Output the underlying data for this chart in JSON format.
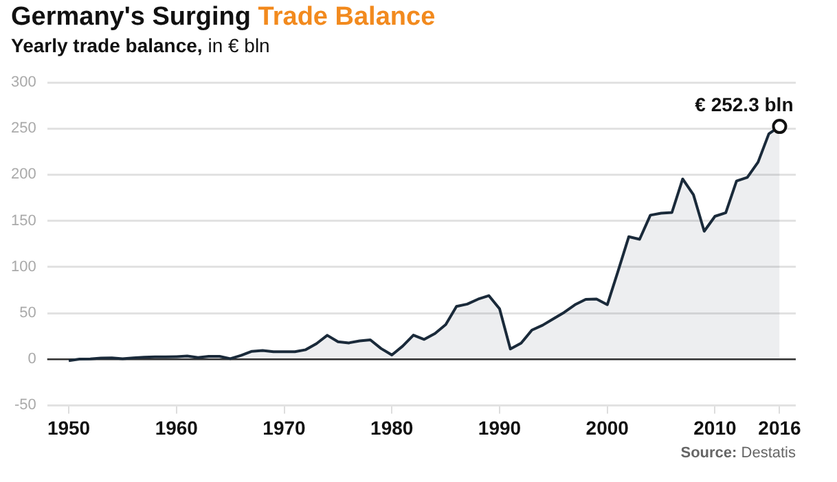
{
  "chart_data": {
    "type": "area",
    "title": "Germany's Surging Trade Balance",
    "subtitle": "Yearly trade balance, in € bln",
    "x": [
      1950,
      1951,
      1952,
      1953,
      1954,
      1955,
      1956,
      1957,
      1958,
      1959,
      1960,
      1961,
      1962,
      1963,
      1964,
      1965,
      1966,
      1967,
      1968,
      1969,
      1970,
      1971,
      1972,
      1973,
      1974,
      1975,
      1976,
      1977,
      1978,
      1979,
      1980,
      1981,
      1982,
      1983,
      1984,
      1985,
      1986,
      1987,
      1988,
      1989,
      1990,
      1991,
      1992,
      1993,
      1994,
      1995,
      1996,
      1997,
      1998,
      1999,
      2000,
      2001,
      2002,
      2003,
      2004,
      2005,
      2006,
      2007,
      2008,
      2009,
      2010,
      2011,
      2012,
      2013,
      2014,
      2015,
      2016
    ],
    "series": [
      {
        "color": "#1a2a3a",
        "values": [
          -1.5,
          0.1,
          0.4,
          1.3,
          1.4,
          0.6,
          1.5,
          2.2,
          2.5,
          2.6,
          2.7,
          3.5,
          1.8,
          3.1,
          3.1,
          0.6,
          4.1,
          8.6,
          9.4,
          8.1,
          8.1,
          8.2,
          10.3,
          16.9,
          25.9,
          19.0,
          17.7,
          19.8,
          21.0,
          11.6,
          4.6,
          14.2,
          26.1,
          21.5,
          27.9,
          37.5,
          57.2,
          59.8,
          65.1,
          68.9,
          54.6,
          11.1,
          17.4,
          31.6,
          36.9,
          43.9,
          50.8,
          59.1,
          64.9,
          65.2,
          59.1,
          95.5,
          132.8,
          130.0,
          156.1,
          158.2,
          159.0,
          195.3,
          178.3,
          138.7,
          154.9,
          158.7,
          193.2,
          197.0,
          213.6,
          244.3,
          252.3
        ]
      }
    ],
    "xlim": [
      1948,
      2017.5
    ],
    "xticks": [
      1950,
      1960,
      1970,
      1980,
      1990,
      2000,
      2010,
      2016
    ],
    "ylim": [
      -50,
      300
    ],
    "yticks": [
      -50,
      0,
      50,
      100,
      150,
      200,
      250,
      300
    ],
    "grid": "y",
    "legend": false,
    "marker": "none",
    "ref_lines": [
      {
        "axis": "y",
        "value": 0,
        "color": "#333333"
      }
    ],
    "annotations": [
      {
        "text": "€ 252.3 bln",
        "x": 2016,
        "y": 252.3
      },
      "Source: Destatis"
    ]
  }
}
